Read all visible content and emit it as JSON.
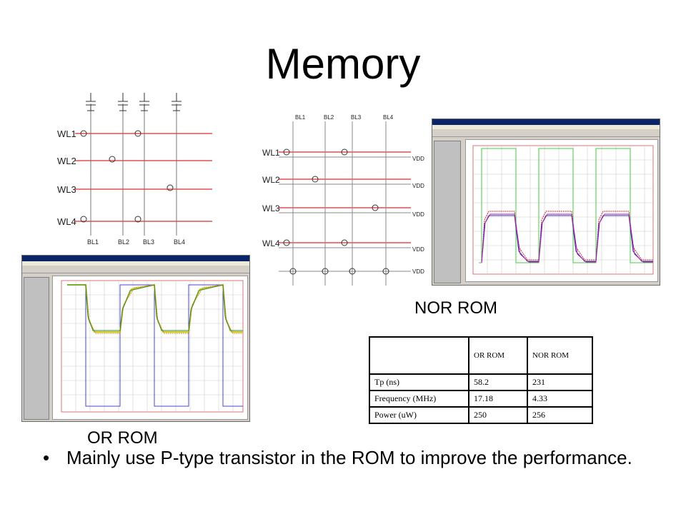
{
  "slide": {
    "title": "Memory",
    "captions": {
      "nor_rom": "NOR ROM",
      "or_rom": "OR ROM"
    },
    "bullet": "Mainly use P-type transistor in the ROM to improve the performance."
  },
  "diagram_left": {
    "word_lines": [
      "WL1",
      "WL2",
      "WL3",
      "WL4"
    ],
    "bit_lines": [
      "BL1",
      "BL2",
      "BL3",
      "BL4"
    ]
  },
  "diagram_right": {
    "word_lines": [
      "WL1",
      "WL2",
      "WL3",
      "WL4"
    ],
    "bit_lines": [
      "BL1",
      "BL2",
      "BL3",
      "BL4"
    ],
    "supply": [
      "VDD",
      "VDD",
      "VDD",
      "VDD",
      "VDD"
    ]
  },
  "table": {
    "headers": [
      "",
      "OR ROM",
      "NOR ROM"
    ],
    "rows": [
      [
        "Tp (ns)",
        "58.2",
        "231"
      ],
      [
        "Frequency (MHz)",
        "17.18",
        "4.33"
      ],
      [
        "Power (uW)",
        "250",
        "256"
      ]
    ]
  },
  "colors": {
    "word_line": "#e05050",
    "grid": "#bbbbbb",
    "title_bar": "#0a246a",
    "plot_border": "#e07070"
  }
}
